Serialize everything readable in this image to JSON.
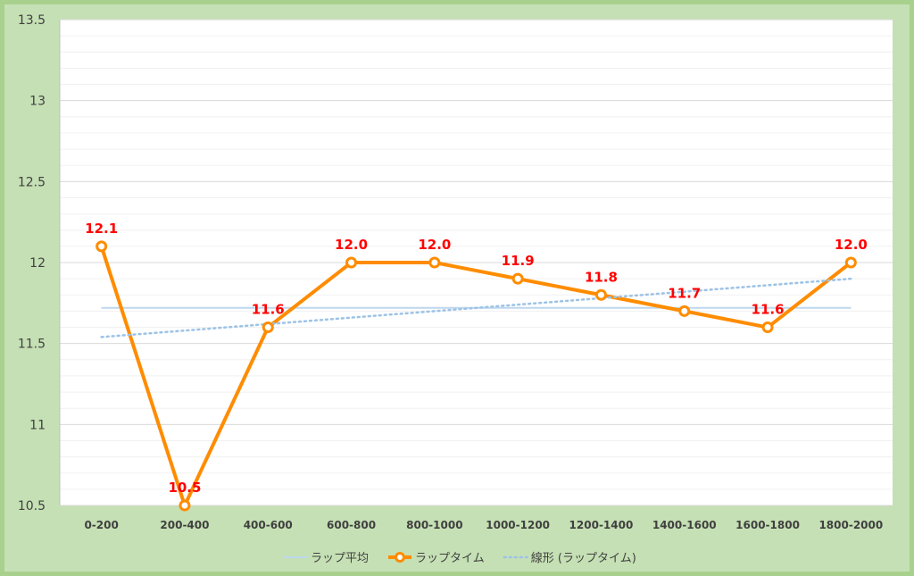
{
  "chart_data": {
    "type": "line",
    "categories": [
      "0-200",
      "200-400",
      "400-600",
      "600-800",
      "800-1000",
      "1000-1200",
      "1200-1400",
      "1400-1600",
      "1600-1800",
      "1800-2000"
    ],
    "series": [
      {
        "name": "ラップ平均",
        "kind": "average",
        "color": "#bdd7ee",
        "values": [
          11.72,
          11.72,
          11.72,
          11.72,
          11.72,
          11.72,
          11.72,
          11.72,
          11.72,
          11.72
        ]
      },
      {
        "name": "ラップタイム",
        "kind": "main",
        "color": "#ff8c00",
        "values": [
          12.1,
          10.5,
          11.6,
          12.0,
          12.0,
          11.9,
          11.8,
          11.7,
          11.6,
          12.0
        ],
        "data_labels": [
          "12.1",
          "10.5",
          "11.6",
          "12.0",
          "12.0",
          "11.9",
          "11.8",
          "11.7",
          "11.6",
          "12.0"
        ]
      },
      {
        "name": "線形 (ラップタイム)",
        "kind": "trend",
        "color": "#9dc3e6",
        "values": [
          11.54,
          11.58,
          11.62,
          11.66,
          11.7,
          11.74,
          11.78,
          11.82,
          11.86,
          11.9
        ]
      }
    ],
    "yticks": [
      "10.5",
      "11",
      "11.5",
      "12",
      "12.5",
      "13",
      "13.5"
    ],
    "ylim": [
      10.5,
      13.5
    ],
    "minor_gridlines": true,
    "legend": "bottom",
    "colors": {
      "background": "#c5e0b4",
      "border": "#a9d18e",
      "plot_area": "#ffffff",
      "data_label": "#ff0000"
    }
  }
}
